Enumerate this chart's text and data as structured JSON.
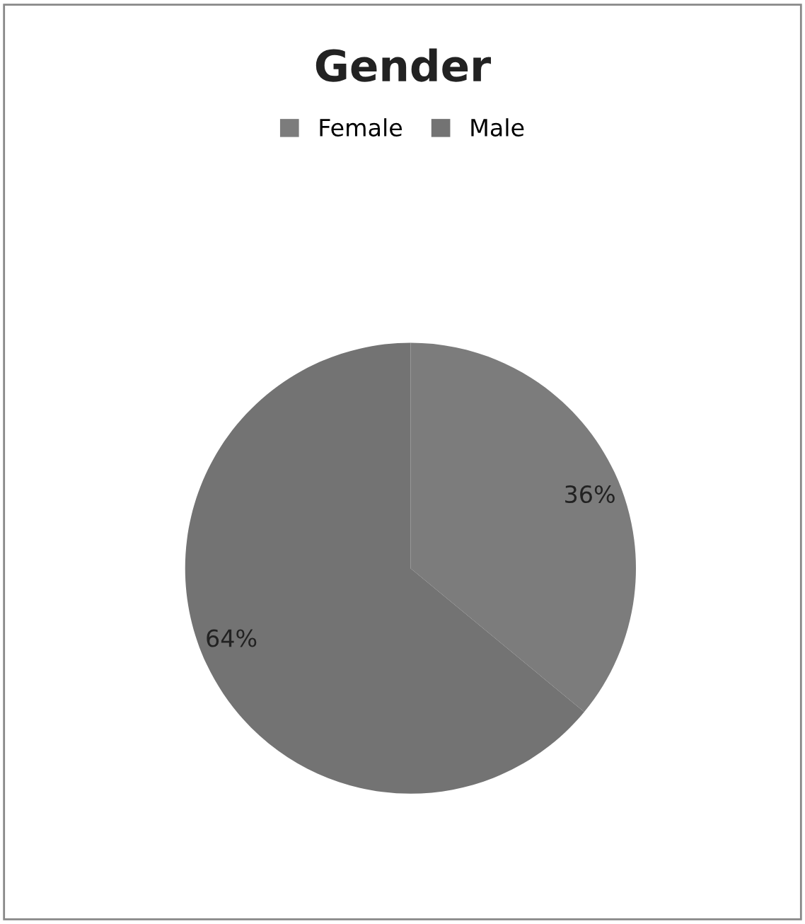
{
  "chart_data": {
    "type": "pie",
    "title": "Gender",
    "categories": [
      "Female",
      "Male"
    ],
    "values": [
      36,
      64
    ],
    "value_labels": [
      "36%",
      "64%"
    ],
    "colors": [
      "#7c7c7c",
      "#737373"
    ],
    "legend": "top"
  }
}
